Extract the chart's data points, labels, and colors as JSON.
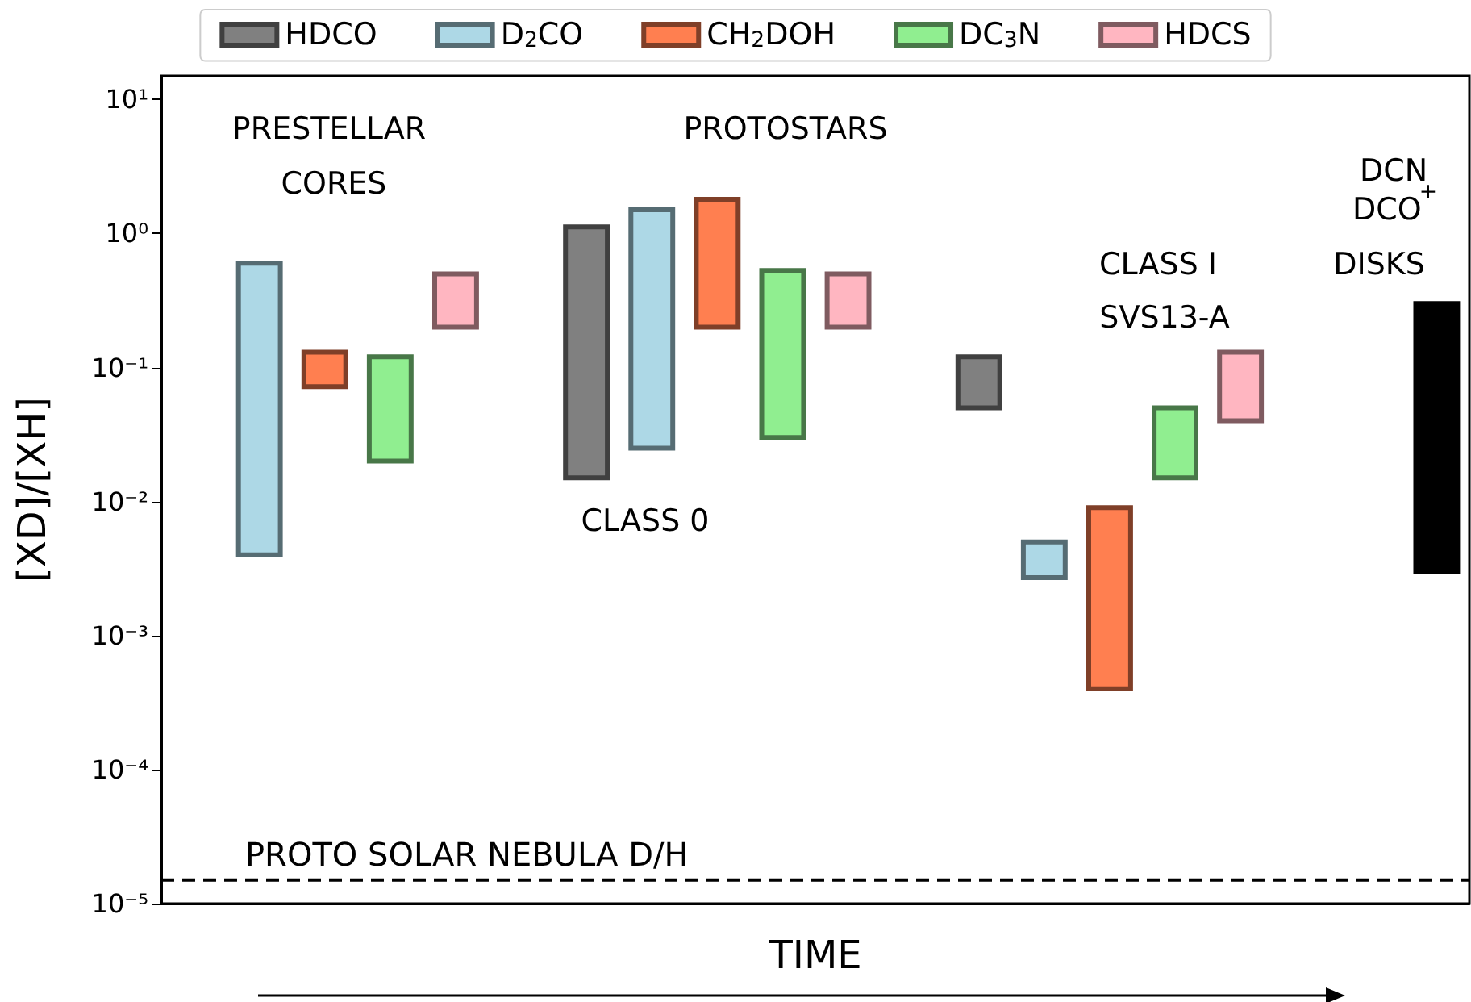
{
  "chart_data": {
    "type": "bar",
    "xlabel": "TIME",
    "ylabel": "[XD]/[XH]",
    "categories": [
      null,
      null,
      null,
      null,
      null,
      null,
      null,
      null,
      null,
      null,
      null,
      null,
      null,
      null,
      null,
      null,
      null,
      null,
      null,
      null
    ],
    "ylim": [
      1e-05,
      15
    ],
    "log": "y",
    "tick_labels": "y",
    "grid": false,
    "legend": "top",
    "yticks": [
      {
        "value": 1e-05,
        "label": "10⁻⁵"
      },
      {
        "value": 0.0001,
        "label": "10⁻⁴"
      },
      {
        "value": 0.001,
        "label": "10⁻³"
      },
      {
        "value": 0.01,
        "label": "10⁻²"
      },
      {
        "value": 0.1,
        "label": "10⁻¹"
      },
      {
        "value": 1,
        "label": "10⁰"
      },
      {
        "value": 10,
        "label": "10¹"
      }
    ],
    "series": [
      {
        "name": "HDCO",
        "color": "#808080",
        "base": [
          null,
          null,
          null,
          null,
          null,
          null,
          0.015,
          null,
          null,
          null,
          null,
          null,
          0.05,
          null,
          null,
          null,
          null,
          null,
          null,
          null
        ],
        "values": [
          null,
          null,
          null,
          null,
          null,
          null,
          1.105,
          null,
          null,
          null,
          null,
          null,
          0.07,
          null,
          null,
          null,
          null,
          null,
          null,
          null
        ]
      },
      {
        "name": "D$_{2}$CO",
        "color": "#add8e6",
        "base": [
          null,
          0.004,
          null,
          null,
          null,
          null,
          null,
          0.025,
          null,
          null,
          null,
          null,
          null,
          0.0027,
          null,
          null,
          null,
          null,
          null,
          null
        ],
        "values": [
          null,
          0.596,
          null,
          null,
          null,
          null,
          null,
          1.475,
          null,
          null,
          null,
          null,
          null,
          0.0023,
          null,
          null,
          null,
          null,
          null,
          null
        ]
      },
      {
        "name": "CH$_{2}$DOH",
        "color": "#ff7f50",
        "base": [
          null,
          null,
          0.072,
          null,
          null,
          null,
          null,
          null,
          0.2,
          null,
          null,
          null,
          null,
          null,
          0.0004,
          null,
          null,
          null,
          null,
          null
        ],
        "values": [
          null,
          null,
          0.058,
          null,
          null,
          null,
          null,
          null,
          1.6,
          null,
          null,
          null,
          null,
          null,
          0.0086,
          null,
          null,
          null,
          null,
          null
        ]
      },
      {
        "name": "DC$_{3}$N",
        "color": "#90ee90",
        "base": [
          null,
          null,
          null,
          0.02,
          null,
          null,
          null,
          null,
          null,
          0.03,
          null,
          null,
          null,
          null,
          null,
          0.015,
          null,
          null,
          null,
          null
        ],
        "values": [
          null,
          null,
          null,
          0.1,
          null,
          null,
          null,
          null,
          null,
          0.5,
          null,
          null,
          null,
          null,
          null,
          0.035,
          null,
          null,
          null,
          null
        ]
      },
      {
        "name": "HDCS",
        "color": "#ffb6c1",
        "base": [
          null,
          null,
          null,
          null,
          0.2,
          null,
          null,
          null,
          null,
          null,
          0.2,
          null,
          null,
          null,
          null,
          null,
          0.04,
          null,
          null,
          null
        ],
        "values": [
          null,
          null,
          null,
          null,
          0.3,
          null,
          null,
          null,
          null,
          null,
          0.3,
          null,
          null,
          null,
          null,
          null,
          0.09,
          null,
          null,
          null
        ]
      },
      {
        "color": "#000000",
        "base": [
          null,
          null,
          null,
          null,
          null,
          null,
          null,
          null,
          null,
          null,
          null,
          null,
          null,
          null,
          null,
          null,
          null,
          null,
          null,
          0.003
        ],
        "values": [
          null,
          null,
          null,
          null,
          null,
          null,
          null,
          null,
          null,
          null,
          null,
          null,
          null,
          null,
          null,
          null,
          null,
          null,
          null,
          0.297
        ]
      }
    ],
    "ref_lines": [
      {
        "axis": "y",
        "value": 1.5e-05,
        "label": "PROTO SOLAR NEBULA D/H",
        "color": "#000000",
        "line_style": "dashed"
      }
    ],
    "annotations": [
      "PRESTELLAR CORES",
      "PROTOSTARS",
      "CLASS 0",
      "CLASS I",
      "SVS13-A",
      "DISKS",
      "DCN",
      "DCO$^{+}$"
    ]
  }
}
